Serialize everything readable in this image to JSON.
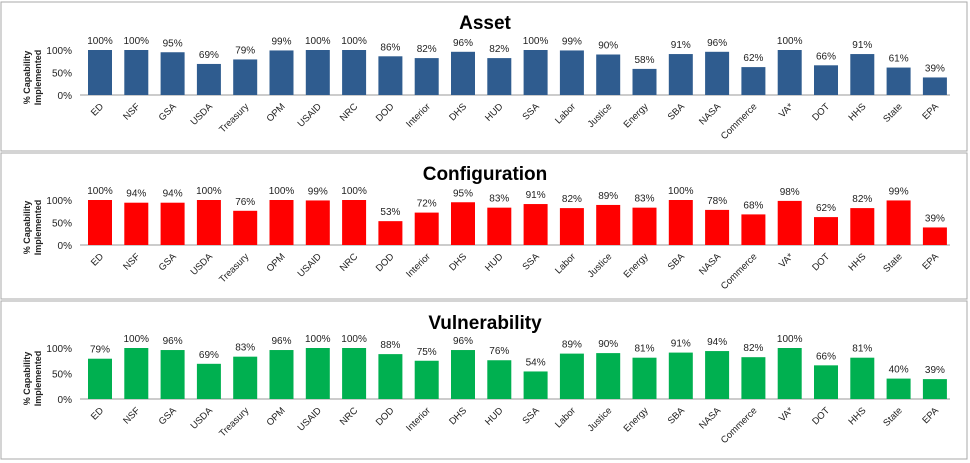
{
  "chart_data": [
    {
      "type": "bar",
      "title": "Asset",
      "ylabel": "% Capability Implemented",
      "ylim": [
        0,
        100
      ],
      "yticks": [
        "0%",
        "50%",
        "100%"
      ],
      "color": "#2F5C8F",
      "categories": [
        "ED",
        "NSF",
        "GSA",
        "USDA",
        "Treasury",
        "OPM",
        "USAID",
        "NRC",
        "DOD",
        "Interior",
        "DHS",
        "HUD",
        "SSA",
        "Labor",
        "Justice",
        "Energy",
        "SBA",
        "NASA",
        "Commerce",
        "VA*",
        "DOT",
        "HHS",
        "State",
        "EPA"
      ],
      "values": [
        100,
        100,
        95,
        69,
        79,
        99,
        100,
        100,
        86,
        82,
        96,
        82,
        100,
        99,
        90,
        58,
        91,
        96,
        62,
        100,
        66,
        91,
        61,
        39
      ]
    },
    {
      "type": "bar",
      "title": "Configuration",
      "ylabel": "% Capability Implemented",
      "ylim": [
        0,
        100
      ],
      "yticks": [
        "0%",
        "50%",
        "100%"
      ],
      "color": "#FF0000",
      "categories": [
        "ED",
        "NSF",
        "GSA",
        "USDA",
        "Treasury",
        "OPM",
        "USAID",
        "NRC",
        "DOD",
        "Interior",
        "DHS",
        "HUD",
        "SSA",
        "Labor",
        "Justice",
        "Energy",
        "SBA",
        "NASA",
        "Commerce",
        "VA*",
        "DOT",
        "HHS",
        "State",
        "EPA"
      ],
      "values": [
        100,
        94,
        94,
        100,
        76,
        100,
        99,
        100,
        53,
        72,
        95,
        83,
        91,
        82,
        89,
        83,
        100,
        78,
        68,
        98,
        62,
        82,
        99,
        39
      ]
    },
    {
      "type": "bar",
      "title": "Vulnerability",
      "ylabel": "% Capability Implemented",
      "ylim": [
        0,
        100
      ],
      "yticks": [
        "0%",
        "50%",
        "100%"
      ],
      "color": "#00B050",
      "categories": [
        "ED",
        "NSF",
        "GSA",
        "USDA",
        "Treasury",
        "OPM",
        "USAID",
        "NRC",
        "DOD",
        "Interior",
        "DHS",
        "HUD",
        "SSA",
        "Labor",
        "Justice",
        "Energy",
        "SBA",
        "NASA",
        "Commerce",
        "VA*",
        "DOT",
        "HHS",
        "State",
        "EPA"
      ],
      "values": [
        79,
        100,
        96,
        69,
        83,
        96,
        100,
        100,
        88,
        75,
        96,
        76,
        54,
        89,
        90,
        81,
        91,
        94,
        82,
        100,
        66,
        81,
        40,
        39
      ]
    }
  ]
}
